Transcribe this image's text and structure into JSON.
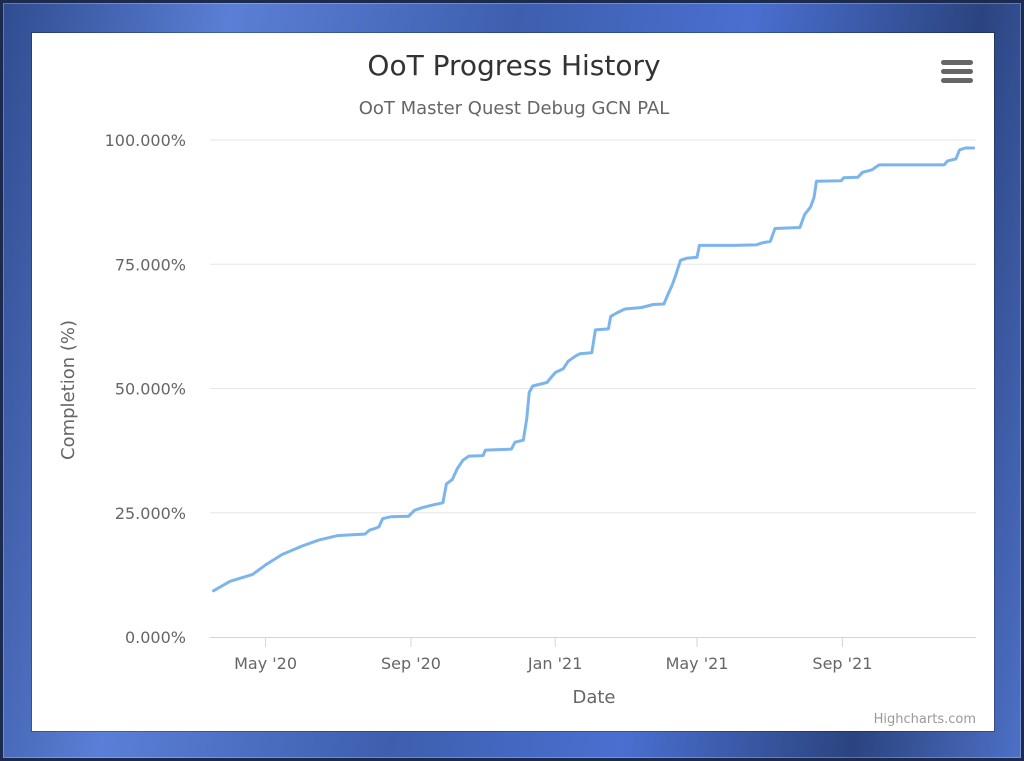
{
  "chart_data": {
    "type": "line",
    "title": "OoT Progress History",
    "subtitle": "OoT Master Quest Debug GCN PAL",
    "xlabel": "Date",
    "ylabel": "Completion (%)",
    "x_range": [
      "2020-03-15",
      "2021-12-23"
    ],
    "xlim": [
      "2020-03-15",
      "2021-12-23"
    ],
    "ylim": [
      0,
      100
    ],
    "x_ticks": [
      {
        "date": "2020-05-01",
        "label": "May '20"
      },
      {
        "date": "2020-09-01",
        "label": "Sep '20"
      },
      {
        "date": "2021-01-01",
        "label": "Jan '21"
      },
      {
        "date": "2021-05-01",
        "label": "May '21"
      },
      {
        "date": "2021-09-01",
        "label": "Sep '21"
      }
    ],
    "y_ticks": [
      {
        "value": 0,
        "label": "0.000%"
      },
      {
        "value": 25,
        "label": "25.000%"
      },
      {
        "value": 50,
        "label": "50.000%"
      },
      {
        "value": 75,
        "label": "75.000%"
      },
      {
        "value": 100,
        "label": "100.000%"
      }
    ],
    "grid": true,
    "legend": "none",
    "series": [
      {
        "color": "#7cb5ec",
        "points": [
          [
            "2020-03-18",
            9.3
          ],
          [
            "2020-04-01",
            11.2
          ],
          [
            "2020-04-20",
            12.6
          ],
          [
            "2020-05-01",
            14.5
          ],
          [
            "2020-05-15",
            16.6
          ],
          [
            "2020-06-01",
            18.3
          ],
          [
            "2020-06-15",
            19.5
          ],
          [
            "2020-07-01",
            20.4
          ],
          [
            "2020-07-15",
            20.6
          ],
          [
            "2020-07-24",
            20.7
          ],
          [
            "2020-07-28",
            21.5
          ],
          [
            "2020-08-01",
            21.8
          ],
          [
            "2020-08-05",
            22.2
          ],
          [
            "2020-08-08",
            23.8
          ],
          [
            "2020-08-15",
            24.2
          ],
          [
            "2020-08-30",
            24.3
          ],
          [
            "2020-09-04",
            25.5
          ],
          [
            "2020-09-10",
            26.0
          ],
          [
            "2020-09-20",
            26.6
          ],
          [
            "2020-09-28",
            27.0
          ],
          [
            "2020-10-01",
            30.8
          ],
          [
            "2020-10-06",
            31.7
          ],
          [
            "2020-10-10",
            33.8
          ],
          [
            "2020-10-15",
            35.6
          ],
          [
            "2020-10-20",
            36.4
          ],
          [
            "2020-11-01",
            36.5
          ],
          [
            "2020-11-03",
            37.6
          ],
          [
            "2020-11-25",
            37.8
          ],
          [
            "2020-11-28",
            39.2
          ],
          [
            "2020-12-05",
            39.6
          ],
          [
            "2020-12-08",
            44.0
          ],
          [
            "2020-12-10",
            49.2
          ],
          [
            "2020-12-13",
            50.5
          ],
          [
            "2020-12-25",
            51.2
          ],
          [
            "2021-01-01",
            53.2
          ],
          [
            "2021-01-08",
            54.0
          ],
          [
            "2021-01-12",
            55.5
          ],
          [
            "2021-01-18",
            56.5
          ],
          [
            "2021-01-22",
            57.0
          ],
          [
            "2021-02-01",
            57.2
          ],
          [
            "2021-02-04",
            61.8
          ],
          [
            "2021-02-15",
            62.0
          ],
          [
            "2021-02-17",
            64.5
          ],
          [
            "2021-02-22",
            65.2
          ],
          [
            "2021-03-01",
            66.0
          ],
          [
            "2021-03-15",
            66.3
          ],
          [
            "2021-03-25",
            66.9
          ],
          [
            "2021-04-03",
            67.0
          ],
          [
            "2021-04-07",
            69.3
          ],
          [
            "2021-04-10",
            70.8
          ],
          [
            "2021-04-13",
            72.8
          ],
          [
            "2021-04-17",
            75.8
          ],
          [
            "2021-04-22",
            76.2
          ],
          [
            "2021-05-01",
            76.4
          ],
          [
            "2021-05-03",
            78.8
          ],
          [
            "2021-06-01",
            78.8
          ],
          [
            "2021-06-20",
            78.9
          ],
          [
            "2021-06-25",
            79.3
          ],
          [
            "2021-07-02",
            79.6
          ],
          [
            "2021-07-06",
            82.2
          ],
          [
            "2021-07-27",
            82.4
          ],
          [
            "2021-07-31",
            85.0
          ],
          [
            "2021-08-05",
            86.5
          ],
          [
            "2021-08-08",
            88.5
          ],
          [
            "2021-08-10",
            91.7
          ],
          [
            "2021-08-31",
            91.8
          ],
          [
            "2021-09-02",
            92.4
          ],
          [
            "2021-09-14",
            92.5
          ],
          [
            "2021-09-18",
            93.5
          ],
          [
            "2021-09-26",
            94.0
          ],
          [
            "2021-10-02",
            95.0
          ],
          [
            "2021-11-26",
            95.0
          ],
          [
            "2021-11-29",
            95.8
          ],
          [
            "2021-12-06",
            96.2
          ],
          [
            "2021-12-09",
            98.0
          ],
          [
            "2021-12-14",
            98.4
          ],
          [
            "2021-12-21",
            98.4
          ]
        ]
      }
    ]
  },
  "menu": {
    "icon": "hamburger-menu-icon"
  },
  "credits": {
    "text": "Highcharts.com"
  }
}
